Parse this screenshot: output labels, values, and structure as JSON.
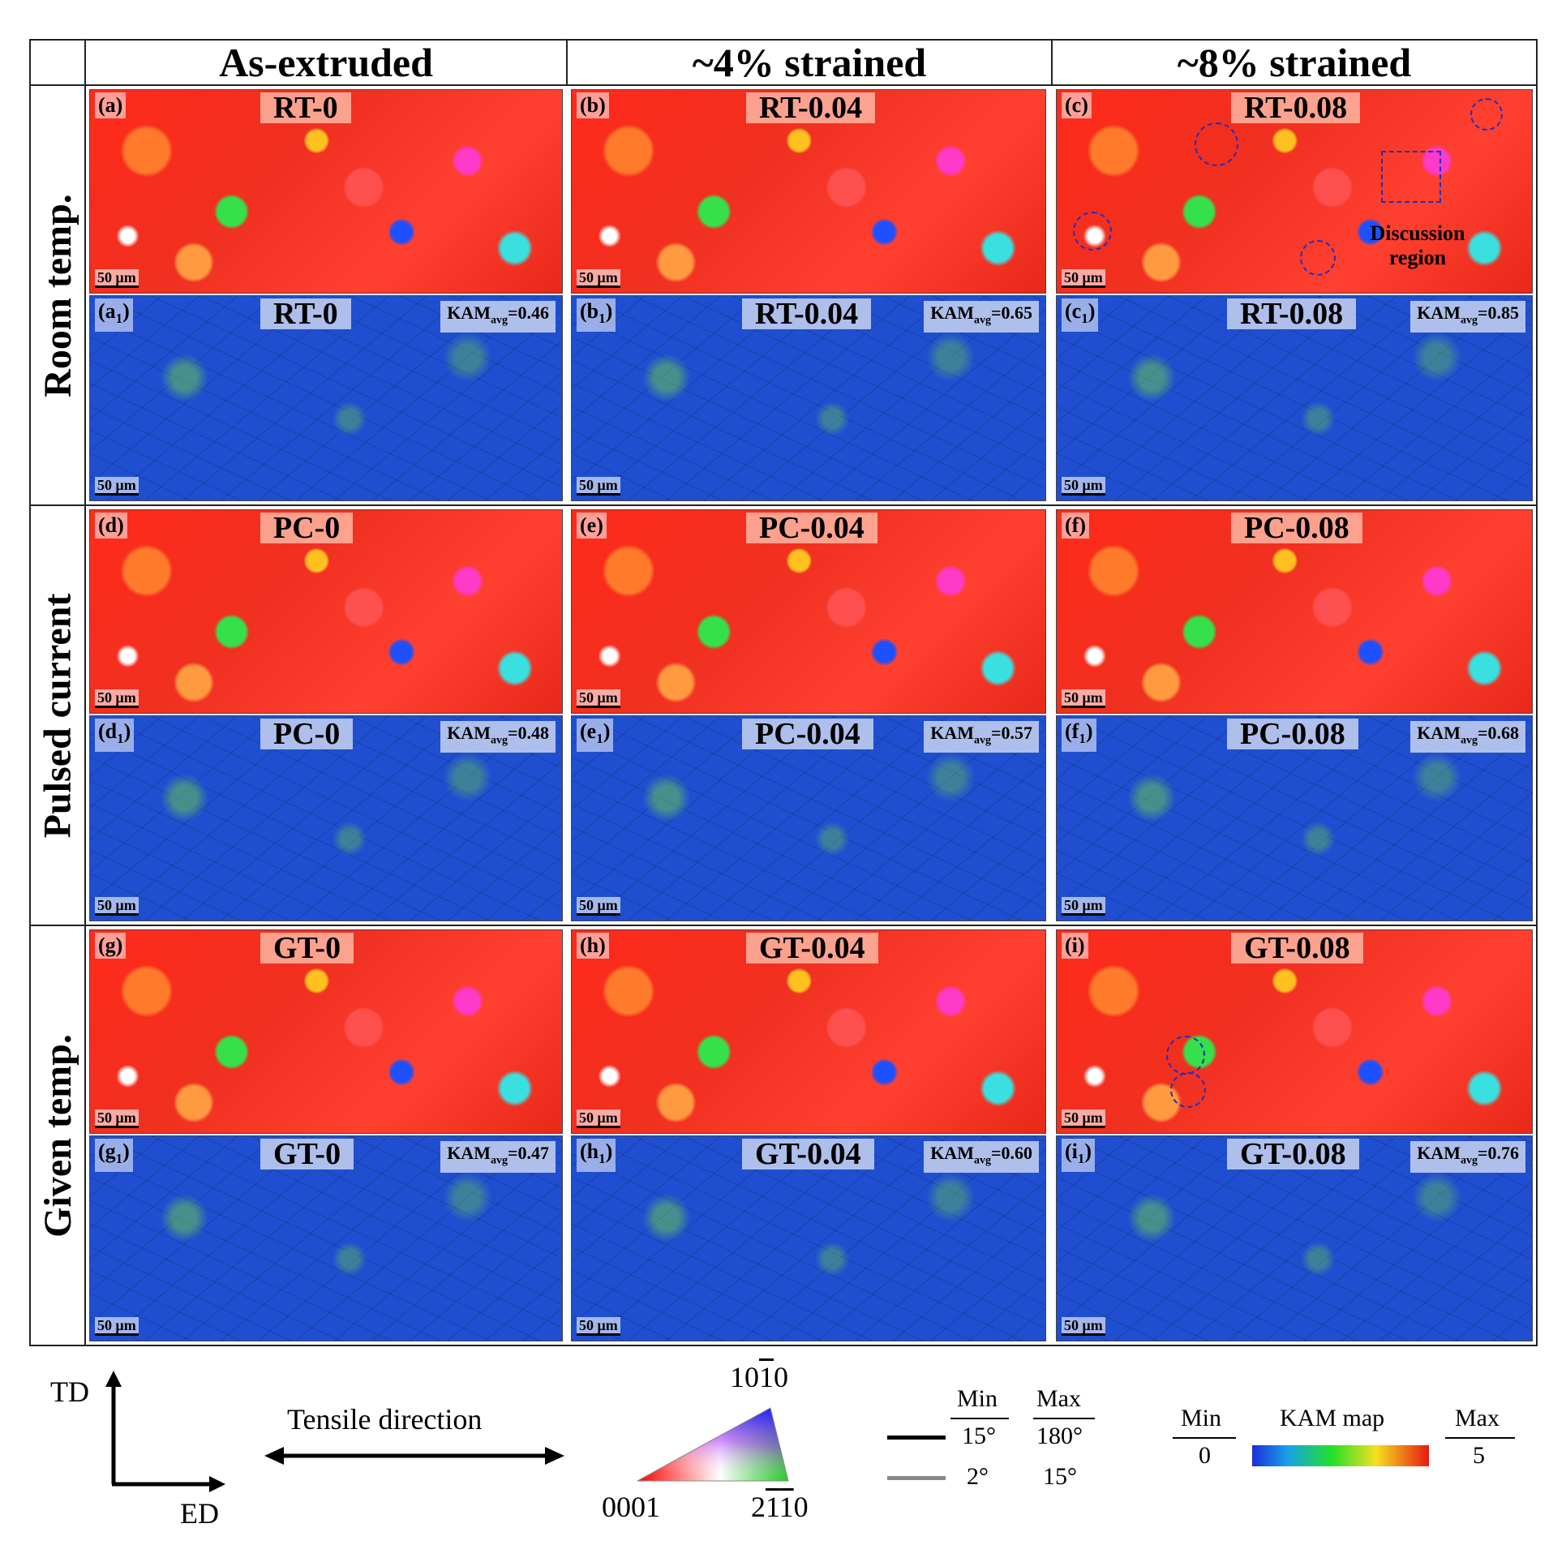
{
  "columns": [
    "As-extruded",
    "~4% strained",
    "~8% strained"
  ],
  "rows": [
    "Room temp.",
    "Pulsed current",
    "Given temp."
  ],
  "panels": {
    "a": {
      "label": "(a)",
      "title": "RT-0"
    },
    "b": {
      "label": "(b)",
      "title": "RT-0.04"
    },
    "c": {
      "label": "(c)",
      "title": "RT-0.08"
    },
    "a1": {
      "label": "(a",
      "sub": "1",
      "close": ")",
      "title": "RT-0",
      "kam_prefix": "KAM",
      "kam_sub": "avg",
      "kam_value": "=0.46"
    },
    "b1": {
      "label": "(b",
      "sub": "1",
      "close": ")",
      "title": "RT-0.04",
      "kam_prefix": "KAM",
      "kam_sub": "avg",
      "kam_value": "=0.65"
    },
    "c1": {
      "label": "(c",
      "sub": "1",
      "close": ")",
      "title": "RT-0.08",
      "kam_prefix": "KAM",
      "kam_sub": "avg",
      "kam_value": "=0.85"
    },
    "d": {
      "label": "(d)",
      "title": "PC-0"
    },
    "e": {
      "label": "(e)",
      "title": "PC-0.04"
    },
    "f": {
      "label": "(f)",
      "title": "PC-0.08"
    },
    "d1": {
      "label": "(d",
      "sub": "1",
      "close": ")",
      "title": "PC-0",
      "kam_prefix": "KAM",
      "kam_sub": "avg",
      "kam_value": "=0.48"
    },
    "e1": {
      "label": "(e",
      "sub": "1",
      "close": ")",
      "title": "PC-0.04",
      "kam_prefix": "KAM",
      "kam_sub": "avg",
      "kam_value": "=0.57"
    },
    "f1": {
      "label": "(f",
      "sub": "1",
      "close": ")",
      "title": "PC-0.08",
      "kam_prefix": "KAM",
      "kam_sub": "avg",
      "kam_value": "=0.68"
    },
    "g": {
      "label": "(g)",
      "title": "GT-0"
    },
    "h": {
      "label": "(h)",
      "title": "GT-0.04"
    },
    "i": {
      "label": "(i)",
      "title": "GT-0.08"
    },
    "g1": {
      "label": "(g",
      "sub": "1",
      "close": ")",
      "title": "GT-0",
      "kam_prefix": "KAM",
      "kam_sub": "avg",
      "kam_value": "=0.47"
    },
    "h1": {
      "label": "(h",
      "sub": "1",
      "close": ")",
      "title": "GT-0.04",
      "kam_prefix": "KAM",
      "kam_sub": "avg",
      "kam_value": "=0.60"
    },
    "i1": {
      "label": "(i",
      "sub": "1",
      "close": ")",
      "title": "GT-0.08",
      "kam_prefix": "KAM",
      "kam_sub": "avg",
      "kam_value": "=0.76"
    }
  },
  "scale_bar": "50 μm",
  "discussion_region": {
    "line1": "Discussion",
    "line2": "region"
  },
  "legend": {
    "axis_td": "TD",
    "axis_ed": "ED",
    "tensile_direction": "Tensile direction",
    "ipf": {
      "top": "10",
      "top_bar": "1",
      "top_end": "0",
      "left": "0001",
      "right_a": "2",
      "right_bar1": "1",
      "right_bar2": "1",
      "right_end": "0"
    },
    "boundaries": {
      "min_label": "Min",
      "max_label": "Max",
      "high_min": "15°",
      "high_max": "180°",
      "low_min": "2°",
      "low_max": "15°"
    },
    "kam": {
      "min_label": "Min",
      "min_value": "0",
      "title": "KAM map",
      "max_label": "Max",
      "max_value": "5"
    }
  },
  "colors": {
    "kam_low": "#1a2fd8",
    "kam_mid": "#22e02a",
    "kam_high_mid": "#f5e020",
    "kam_high": "#e81a10"
  }
}
